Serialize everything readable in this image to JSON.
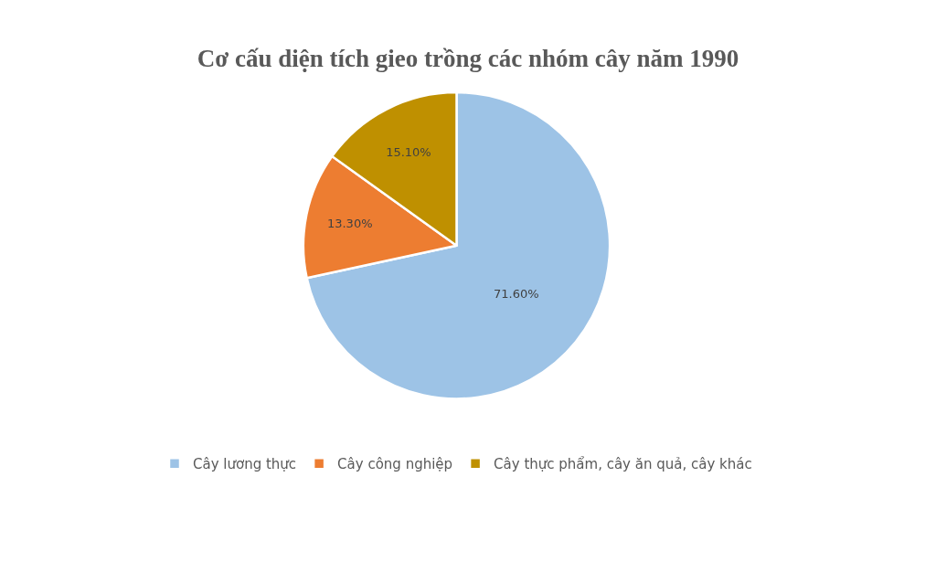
{
  "chart_data": {
    "type": "pie",
    "title": "Cơ cấu diện tích gieo trồng các nhóm cây năm 1990",
    "categories": [
      "Cây lương thực",
      "Cây công nghiệp",
      "Cây thực phẩm, cây ăn quả, cây khác"
    ],
    "values": [
      71.6,
      13.3,
      15.1
    ],
    "value_labels": [
      "71.60%",
      "13.30%",
      "15.10%"
    ],
    "colors": [
      "#9dc3e6",
      "#ed7d31",
      "#bf9000"
    ],
    "legend": "bottom"
  }
}
